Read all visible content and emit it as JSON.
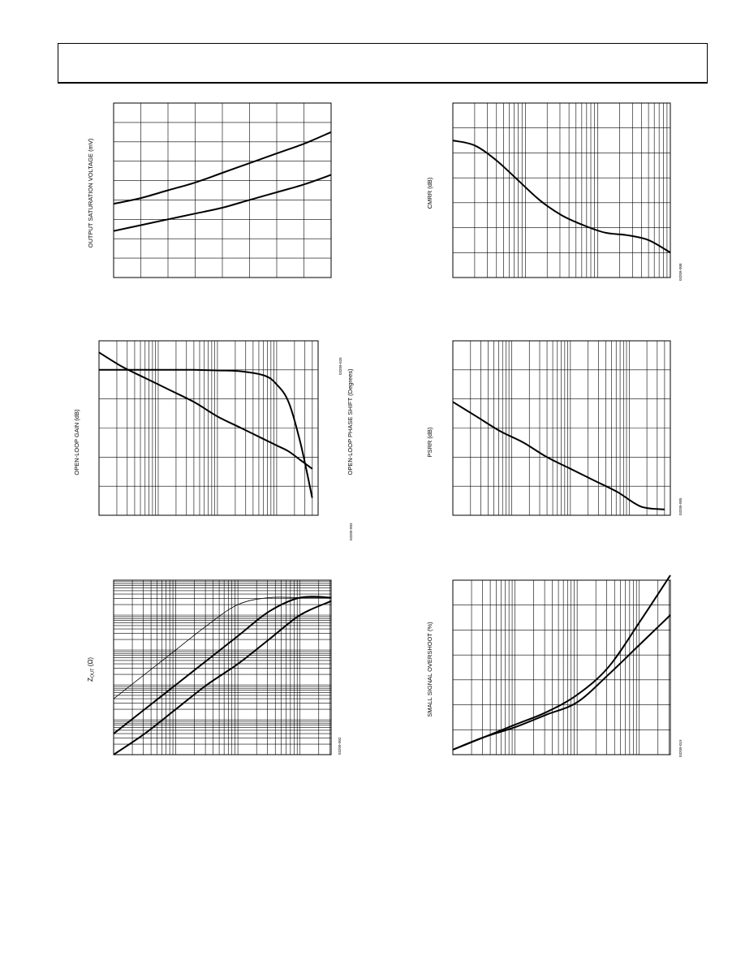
{
  "charts": {
    "output_saturation": {
      "ylabel": "OUTPUT SATURATION VOLTAGE (mV)",
      "code": "03209-020"
    },
    "cmrr": {
      "ylabel": "CMRR (dB)",
      "code": "03209-008"
    },
    "open_loop": {
      "ylabel": "OPEN-LOOP GAIN (dB)",
      "ylabel_right": "OPEN-LOOP PHASE SHIFT (Degrees)",
      "code": "03209-003"
    },
    "psrr": {
      "ylabel": "PSRR (dB)",
      "code": "03209-005"
    },
    "zout": {
      "ylabel_prefix": "Z",
      "ylabel_sub": "OUT",
      "ylabel_suffix": " (Ω)",
      "code": "03209-002"
    },
    "overshoot": {
      "ylabel": "SMALL SIGNAL OVERSHOOT (%)",
      "code": "03209-019"
    }
  },
  "chart_data": [
    {
      "type": "line",
      "ylabel": "OUTPUT SATURATION VOLTAGE (mV)",
      "grid": true,
      "x": [
        0,
        1,
        2,
        3,
        4,
        5,
        6,
        7,
        8
      ],
      "series": [
        {
          "values": [
            3.8,
            4.1,
            4.5,
            4.9,
            5.4,
            5.9,
            6.4,
            6.9,
            7.5
          ]
        },
        {
          "values": [
            2.4,
            2.7,
            3.0,
            3.3,
            3.6,
            4.0,
            4.4,
            4.8,
            5.3
          ]
        }
      ],
      "xlim": [
        0,
        8
      ],
      "ylim": [
        0,
        9
      ]
    },
    {
      "type": "line",
      "ylabel": "CMRR (dB)",
      "x_scale": "log",
      "grid": true,
      "x": [
        0,
        0.3,
        0.6,
        0.9,
        1.2,
        1.5,
        1.8,
        2.1,
        2.4,
        2.7,
        3.0
      ],
      "series": [
        {
          "values": [
            5.5,
            5.3,
            4.7,
            3.9,
            3.1,
            2.5,
            2.1,
            1.8,
            1.7,
            1.5,
            1.0
          ]
        }
      ],
      "xlim": [
        0,
        3
      ],
      "ylim": [
        0,
        7
      ]
    },
    {
      "type": "line",
      "ylabel": "OPEN-LOOP GAIN (dB)",
      "ylabel_right": "OPEN-LOOP PHASE SHIFT (Degrees)",
      "x_scale": "log",
      "grid": true,
      "x": [
        0,
        0.4,
        0.8,
        1.2,
        1.6,
        2.0,
        2.4,
        2.8,
        3.0,
        3.2,
        3.4,
        3.6
      ],
      "series": [
        {
          "values": [
            5.6,
            5.1,
            4.7,
            4.3,
            3.9,
            3.4,
            3.0,
            2.6,
            2.4,
            2.2,
            1.9,
            1.6
          ]
        },
        {
          "values": [
            5.0,
            5.0,
            5.0,
            5.0,
            5.0,
            4.98,
            4.95,
            4.8,
            4.5,
            3.9,
            2.5,
            0.6
          ]
        }
      ],
      "xlim": [
        0,
        3.7
      ],
      "ylim": [
        0,
        6
      ]
    },
    {
      "type": "line",
      "ylabel": "PSRR (dB)",
      "x_scale": "log",
      "grid": true,
      "x": [
        0,
        0.4,
        0.8,
        1.2,
        1.6,
        2.0,
        2.4,
        2.8,
        3.2,
        3.6
      ],
      "series": [
        {
          "values": [
            3.9,
            3.4,
            2.9,
            2.5,
            2.0,
            1.6,
            1.2,
            0.8,
            0.3,
            0.2
          ]
        }
      ],
      "xlim": [
        0,
        3.7
      ],
      "ylim": [
        0,
        6
      ]
    },
    {
      "type": "line",
      "ylabel": "Z OUT (Ω)",
      "x_scale": "log",
      "y_scale": "log",
      "grid": true,
      "x": [
        0,
        0.5,
        1.0,
        1.5,
        2.0,
        2.5,
        3.0,
        3.5
      ],
      "series": [
        {
          "values": [
            1.6,
            2.3,
            3.0,
            3.7,
            4.3,
            4.5,
            4.5,
            4.5
          ]
        },
        {
          "values": [
            0.6,
            1.3,
            2.0,
            2.7,
            3.4,
            4.1,
            4.5,
            4.5
          ]
        },
        {
          "values": [
            0.0,
            0.6,
            1.3,
            2.0,
            2.6,
            3.3,
            4.0,
            4.4
          ]
        }
      ],
      "xlim": [
        0,
        3.5
      ],
      "ylim": [
        0,
        5
      ]
    },
    {
      "type": "line",
      "ylabel": "SMALL SIGNAL OVERSHOOT (%)",
      "x_scale": "log",
      "grid": true,
      "x": [
        0,
        0.5,
        1.0,
        1.5,
        2.0,
        2.5,
        3.0,
        3.5
      ],
      "series": [
        {
          "values": [
            0.2,
            0.7,
            1.2,
            1.7,
            2.4,
            3.5,
            5.3,
            7.2
          ]
        },
        {
          "values": [
            0.2,
            0.7,
            1.1,
            1.6,
            2.1,
            3.2,
            4.4,
            5.6
          ]
        }
      ],
      "xlim": [
        0,
        3.5
      ],
      "ylim": [
        0,
        7
      ]
    }
  ]
}
